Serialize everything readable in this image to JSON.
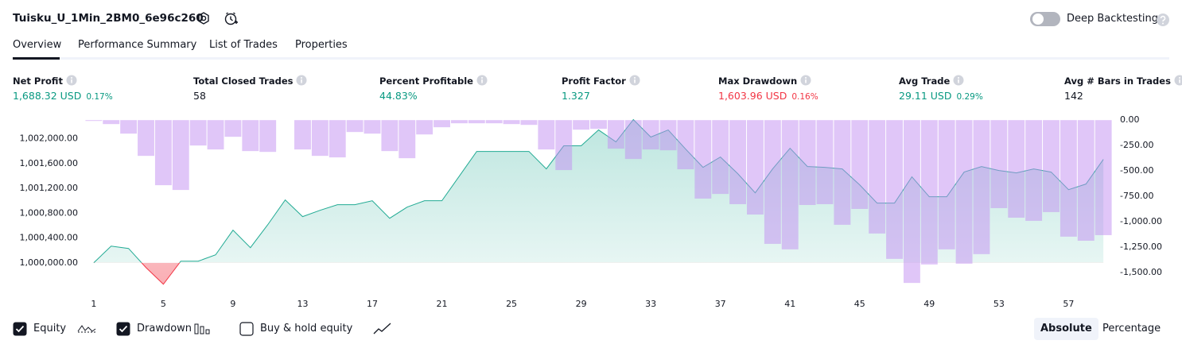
{
  "header": {
    "title": "Tuisku_U_1Min_2BM0_6e96c260",
    "deep_backtesting": "Deep Backtesting",
    "deep_backtesting_on": false
  },
  "tabs": [
    "Overview",
    "Performance Summary",
    "List of Trades",
    "Properties"
  ],
  "active_tab": 0,
  "metrics": [
    {
      "label": "Net Profit",
      "value": "1,688.32 USD",
      "percent": "0.17%",
      "color": "#089981"
    },
    {
      "label": "Total Closed Trades",
      "value": "58",
      "color": "#131722"
    },
    {
      "label": "Percent Profitable",
      "value": "44.83%",
      "color": "#089981"
    },
    {
      "label": "Profit Factor",
      "value": "1.327",
      "color": "#089981"
    },
    {
      "label": "Max Drawdown",
      "value": "1,603.96 USD",
      "percent": "0.16%",
      "color": "#f23645"
    },
    {
      "label": "Avg Trade",
      "value": "29.11 USD",
      "percent": "0.29%",
      "color": "#089981"
    },
    {
      "label": "Avg # Bars in Trades",
      "value": "142",
      "color": "#131722"
    }
  ],
  "chart_data": {
    "type": "combo",
    "x": [
      1,
      2,
      3,
      4,
      5,
      6,
      7,
      8,
      9,
      10,
      11,
      12,
      13,
      14,
      15,
      16,
      17,
      18,
      19,
      20,
      21,
      22,
      23,
      24,
      25,
      26,
      27,
      28,
      29,
      30,
      31,
      32,
      33,
      34,
      35,
      36,
      37,
      38,
      39,
      40,
      41,
      42,
      43,
      44,
      45,
      46,
      47,
      48,
      49,
      50,
      51,
      52,
      53,
      54,
      55,
      56,
      57,
      58,
      59
    ],
    "xlim": [
      0.55,
      59.45
    ],
    "xticks": [
      1,
      5,
      9,
      13,
      17,
      21,
      25,
      29,
      33,
      37,
      41,
      45,
      49,
      53,
      57
    ],
    "ylim": [
      999600,
      1002340
    ],
    "yticks": [
      {
        "value": 1000000,
        "label": "1,000,000.00"
      },
      {
        "value": 1000400,
        "label": "1,000,400.00"
      },
      {
        "value": 1000800,
        "label": "1,000,800.00"
      },
      {
        "value": 1001200,
        "label": "1,001,200.00"
      },
      {
        "value": 1001600,
        "label": "1,001,600.00"
      },
      {
        "value": 1002000,
        "label": "1,002,000.00"
      }
    ],
    "y2lim": [
      -1650,
      25
    ],
    "y2ticks": [
      {
        "value": 0,
        "label": "0.00"
      },
      {
        "value": -250,
        "label": "-250.00"
      },
      {
        "value": -500,
        "label": "-500.00"
      },
      {
        "value": -750,
        "label": "-750.00"
      },
      {
        "value": -1000,
        "label": "-1,000.00"
      },
      {
        "value": -1250,
        "label": "-1,250.00"
      },
      {
        "value": -1500,
        "label": "-1,500.00"
      }
    ],
    "series": [
      {
        "name": "Equity",
        "type": "line",
        "color": "#22ab94",
        "checked": true,
        "values": [
          1000000,
          1000269,
          1000231,
          999923,
          999654,
          1000026,
          1000026,
          1000128,
          1000526,
          1000244,
          1000615,
          1001013,
          1000744,
          1000846,
          1000936,
          1000936,
          1001000,
          1000718,
          1000897,
          1001000,
          1001000,
          1001397,
          1001795,
          1001795,
          1001795,
          1001795,
          1001513,
          1001885,
          1001885,
          1002141,
          1001949,
          1002308,
          1002026,
          1002141,
          1001833,
          1001538,
          1001705,
          1001436,
          1001128,
          1001513,
          1001846,
          1001551,
          1001538,
          1001513,
          1001256,
          1000962,
          1000962,
          1001385,
          1001064,
          1001064,
          1001462,
          1001551,
          1001487,
          1001449,
          1001513,
          1001462,
          1001179,
          1001269,
          1001667
        ]
      },
      {
        "name": "Drawdown",
        "type": "bar",
        "axis": "y2",
        "color": "#c28df2",
        "checked": true,
        "values": [
          -8,
          -39,
          -133,
          -352,
          -641,
          -688,
          -250,
          -289,
          -164,
          -305,
          -313,
          0,
          -289,
          -352,
          -367,
          -117,
          -133,
          -305,
          -375,
          -141,
          -70,
          -31,
          -31,
          -31,
          -39,
          -47,
          -289,
          -492,
          -94,
          -86,
          -281,
          -383,
          -289,
          -297,
          -484,
          -773,
          -727,
          -828,
          -930,
          -1219,
          -1273,
          -836,
          -828,
          -1031,
          -875,
          -1117,
          -1367,
          -1604,
          -1422,
          -1273,
          -1414,
          -1320,
          -867,
          -961,
          -992,
          -906,
          -1148,
          -1188,
          -1133
        ]
      }
    ]
  },
  "buy_hold": {
    "label": "Buy & hold equity",
    "checked": false
  },
  "view_buttons": [
    "Absolute",
    "Percentage"
  ],
  "active_view": 0
}
